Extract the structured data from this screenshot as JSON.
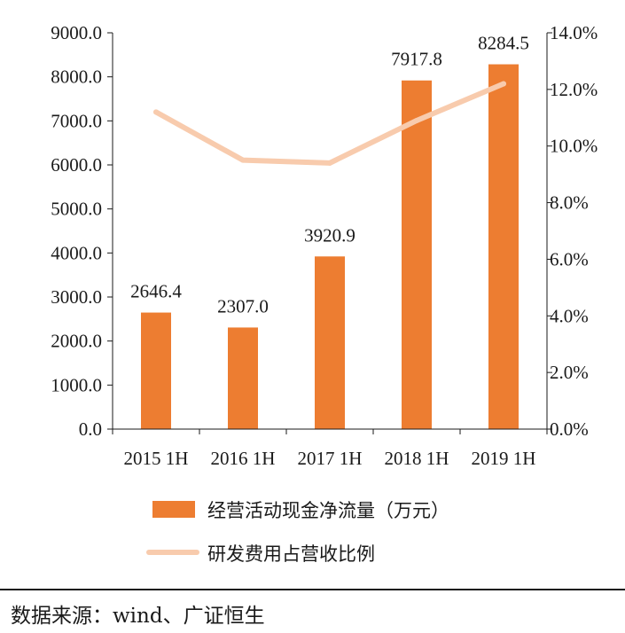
{
  "chart_data": {
    "type": "bar+line",
    "categories": [
      "2015 1H",
      "2016 1H",
      "2017 1H",
      "2018 1H",
      "2019 1H"
    ],
    "series": [
      {
        "name": "经营活动现金净流量（万元）",
        "type": "bar",
        "axis": "left",
        "color": "#ED7D31",
        "values": [
          2646.4,
          2307.0,
          3920.9,
          7917.8,
          8284.5
        ],
        "labels": [
          "2646.4",
          "2307.0",
          "3920.9",
          "7917.8",
          "8284.5"
        ]
      },
      {
        "name": "研发费用占营收比例",
        "type": "line",
        "axis": "right",
        "color": "#F8CBAD",
        "values": [
          11.2,
          9.5,
          9.4,
          10.9,
          12.2
        ]
      }
    ],
    "y_left": {
      "ylim": [
        0,
        9000
      ],
      "ticks": [
        "0.0",
        "1000.0",
        "2000.0",
        "3000.0",
        "4000.0",
        "5000.0",
        "6000.0",
        "7000.0",
        "8000.0",
        "9000.0"
      ]
    },
    "y_right": {
      "ylim": [
        0,
        14
      ],
      "ticks": [
        "0.0%",
        "2.0%",
        "4.0%",
        "6.0%",
        "8.0%",
        "10.0%",
        "12.0%",
        "14.0%"
      ]
    },
    "grid": false,
    "legend_position": "bottom"
  },
  "source": {
    "text": "数据来源：wind、广证恒生"
  }
}
